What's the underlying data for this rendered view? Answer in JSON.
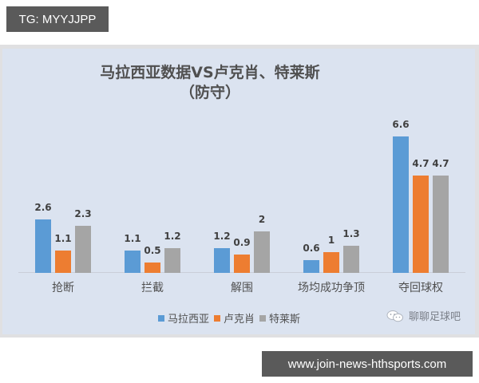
{
  "watermark_top": "TG: MYYJJPP",
  "watermark_bottom": "www.join-news-hthsports.com",
  "source_tag": {
    "icon": "wechat-icon",
    "text": "聊聊足球吧"
  },
  "chart_data": {
    "type": "bar",
    "title": "马拉西亚数据VS卢克肖、特莱斯",
    "subtitle": "（防守）",
    "categories": [
      "抢断",
      "拦截",
      "解围",
      "场均成功争顶",
      "夺回球权"
    ],
    "series": [
      {
        "name": "马拉西亚",
        "color": "#5b9bd5",
        "values": [
          2.6,
          1.1,
          1.2,
          0.6,
          6.6
        ]
      },
      {
        "name": "卢克肖",
        "color": "#ed7d31",
        "values": [
          1.1,
          0.5,
          0.9,
          1,
          4.7
        ]
      },
      {
        "name": "特莱斯",
        "color": "#a5a5a5",
        "values": [
          2.3,
          1.2,
          2,
          1.3,
          4.7
        ]
      }
    ],
    "xlabel": "",
    "ylabel": "",
    "ylim": [
      0,
      7
    ],
    "grid": false,
    "legend_position": "bottom",
    "data_labels": true
  }
}
